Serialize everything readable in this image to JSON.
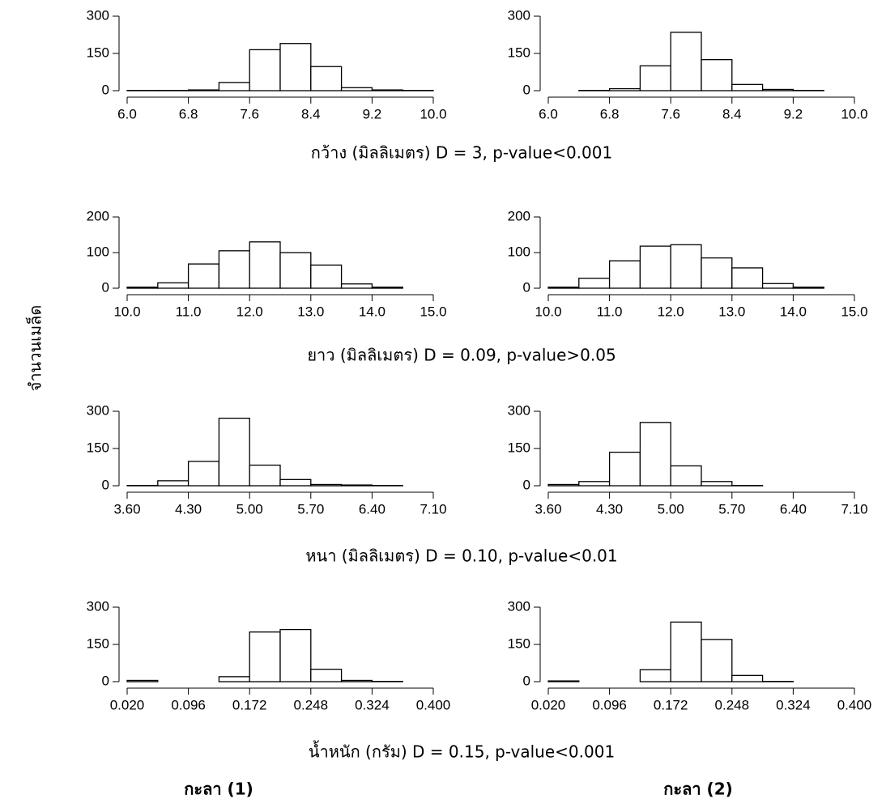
{
  "chart_data": [
    {
      "type": "histogram",
      "color": "#ffffff",
      "bins": [
        6.0,
        6.4,
        6.8,
        7.2,
        7.6,
        8.0,
        8.4,
        8.8,
        9.2,
        9.6,
        10.0
      ],
      "values": [
        1,
        1,
        3,
        33,
        165,
        190,
        97,
        12,
        3,
        1
      ],
      "xlim": [
        6,
        10
      ],
      "ylim": [
        0,
        300
      ],
      "xticks": [
        {
          "value": 6,
          "label": "6.0"
        },
        6.8,
        7.6,
        8.4,
        9.2,
        {
          "value": 10,
          "label": "10.0"
        }
      ],
      "yticks": [
        0,
        150,
        300
      ]
    },
    {
      "type": "histogram",
      "color": "#ffffff",
      "bins": [
        6.0,
        6.4,
        6.8,
        7.2,
        7.6,
        8.0,
        8.4,
        8.8,
        9.2,
        9.6,
        10.0
      ],
      "values": [
        0,
        1,
        8,
        100,
        235,
        125,
        25,
        5,
        1,
        0
      ],
      "xlim": [
        6,
        10
      ],
      "ylim": [
        0,
        300
      ],
      "xticks": [
        {
          "value": 6,
          "label": "6.0"
        },
        6.8,
        7.6,
        8.4,
        9.2,
        {
          "value": 10,
          "label": "10.0"
        }
      ],
      "yticks": [
        0,
        150,
        300
      ]
    },
    {
      "type": "histogram",
      "color": "#ffffff",
      "bins": [
        10.0,
        10.5,
        11.0,
        11.5,
        12.0,
        12.5,
        13.0,
        13.5,
        14.0,
        14.5,
        15.0
      ],
      "values": [
        3,
        15,
        68,
        105,
        130,
        100,
        65,
        12,
        3,
        0
      ],
      "xlim": [
        10,
        15
      ],
      "ylim": [
        0,
        200
      ],
      "xticks": [
        {
          "value": 10,
          "label": "10.0"
        },
        {
          "value": 11,
          "label": "11.0"
        },
        {
          "value": 12,
          "label": "12.0"
        },
        {
          "value": 13,
          "label": "13.0"
        },
        {
          "value": 14,
          "label": "14.0"
        },
        {
          "value": 15,
          "label": "15.0"
        }
      ],
      "yticks": [
        0,
        100,
        200
      ]
    },
    {
      "type": "histogram",
      "color": "#ffffff",
      "bins": [
        10.0,
        10.5,
        11.0,
        11.5,
        12.0,
        12.5,
        13.0,
        13.5,
        14.0,
        14.5,
        15.0
      ],
      "values": [
        3,
        28,
        77,
        118,
        122,
        85,
        57,
        13,
        3,
        0
      ],
      "xlim": [
        10,
        15
      ],
      "ylim": [
        0,
        200
      ],
      "xticks": [
        {
          "value": 10,
          "label": "10.0"
        },
        {
          "value": 11,
          "label": "11.0"
        },
        {
          "value": 12,
          "label": "12.0"
        },
        {
          "value": 13,
          "label": "13.0"
        },
        {
          "value": 14,
          "label": "14.0"
        },
        {
          "value": 15,
          "label": "15.0"
        }
      ],
      "yticks": [
        0,
        100,
        200
      ]
    },
    {
      "type": "histogram",
      "color": "#ffffff",
      "bins": [
        3.6,
        3.95,
        4.3,
        4.65,
        5.0,
        5.35,
        5.7,
        6.05,
        6.4,
        6.75,
        7.1
      ],
      "values": [
        1,
        20,
        98,
        272,
        83,
        25,
        5,
        3,
        1,
        0
      ],
      "xlim": [
        3.6,
        7.1
      ],
      "ylim": [
        0,
        300
      ],
      "xticks": [
        {
          "value": 3.6,
          "label": "3.60"
        },
        {
          "value": 4.3,
          "label": "4.30"
        },
        {
          "value": 5,
          "label": "5.00"
        },
        {
          "value": 5.7,
          "label": "5.70"
        },
        {
          "value": 6.4,
          "label": "6.40"
        },
        {
          "value": 7.1,
          "label": "7.10"
        }
      ],
      "yticks": [
        0,
        150,
        300
      ]
    },
    {
      "type": "histogram",
      "color": "#ffffff",
      "bins": [
        3.6,
        3.95,
        4.3,
        4.65,
        5.0,
        5.35,
        5.7,
        6.05,
        6.4,
        6.75,
        7.1
      ],
      "values": [
        5,
        17,
        135,
        255,
        80,
        17,
        1,
        0,
        0,
        0
      ],
      "xlim": [
        3.6,
        7.1
      ],
      "ylim": [
        0,
        300
      ],
      "xticks": [
        {
          "value": 3.6,
          "label": "3.60"
        },
        {
          "value": 4.3,
          "label": "4.30"
        },
        {
          "value": 5,
          "label": "5.00"
        },
        {
          "value": 5.7,
          "label": "5.70"
        },
        {
          "value": 6.4,
          "label": "6.40"
        },
        {
          "value": 7.1,
          "label": "7.10"
        }
      ],
      "yticks": [
        0,
        150,
        300
      ]
    },
    {
      "type": "histogram",
      "color": "#ffffff",
      "bins": [
        0.02,
        0.058,
        0.096,
        0.134,
        0.172,
        0.21,
        0.248,
        0.286,
        0.324,
        0.362,
        0.4
      ],
      "values": [
        5,
        0,
        0,
        20,
        200,
        210,
        50,
        5,
        1,
        0
      ],
      "xlim": [
        0.02,
        0.4
      ],
      "ylim": [
        0,
        300
      ],
      "xticks": [
        {
          "value": 0.02,
          "label": "0.020"
        },
        0.096,
        0.172,
        0.248,
        0.324,
        {
          "value": 0.4,
          "label": "0.400"
        }
      ],
      "yticks": [
        0,
        150,
        300
      ]
    },
    {
      "type": "histogram",
      "color": "#ffffff",
      "bins": [
        0.02,
        0.058,
        0.096,
        0.134,
        0.172,
        0.21,
        0.248,
        0.286,
        0.324,
        0.362,
        0.4
      ],
      "values": [
        3,
        0,
        0,
        48,
        240,
        170,
        25,
        1,
        0,
        0
      ],
      "xlim": [
        0.02,
        0.4
      ],
      "ylim": [
        0,
        300
      ],
      "xticks": [
        {
          "value": 0.02,
          "label": "0.020"
        },
        0.096,
        0.172,
        0.248,
        0.324,
        {
          "value": 0.4,
          "label": "0.400"
        }
      ],
      "yticks": [
        0,
        150,
        300
      ]
    }
  ],
  "captions": [
    "กว้าง (มิลลิเมตร)  D = 3, p-value<0.001",
    "ยาว (มิลลิเมตร)  D = 0.09, p-value>0.05",
    "หนา (มิลลิเมตร)  D = 0.10, p-value<0.01",
    "น้ำหนัก (กรัม) D = 0.15, p-value<0.001"
  ],
  "y_label": "จำนวนเมล็ด",
  "group_labels": [
    "กะลา (1)",
    "กะลา (2)"
  ]
}
